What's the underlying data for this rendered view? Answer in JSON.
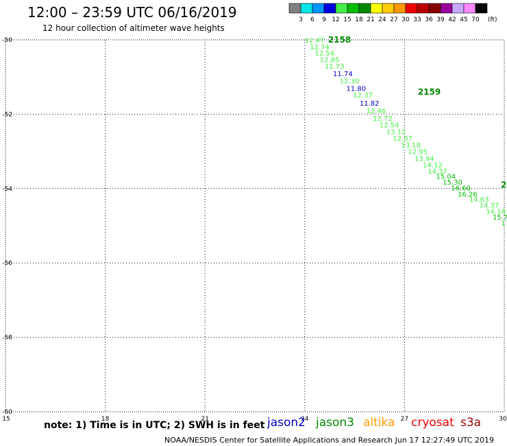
{
  "header": {
    "title": "12:00 – 23:59 UTC 06/16/2019",
    "subtitle": "12 hour collection of altimeter wave heights"
  },
  "legend": {
    "unit": "(ft)",
    "bins": [
      {
        "label": "3",
        "color": "#808080"
      },
      {
        "label": "6",
        "color": "#00e6e6"
      },
      {
        "label": "9",
        "color": "#0096ff"
      },
      {
        "label": "12",
        "color": "#0000e0"
      },
      {
        "label": "15",
        "color": "#44ee44"
      },
      {
        "label": "18",
        "color": "#00bb00"
      },
      {
        "label": "21",
        "color": "#008800"
      },
      {
        "label": "24",
        "color": "#ffff00"
      },
      {
        "label": "27",
        "color": "#ffcc00"
      },
      {
        "label": "30",
        "color": "#ff9900"
      },
      {
        "label": "33",
        "color": "#ee0000"
      },
      {
        "label": "36",
        "color": "#bb0000"
      },
      {
        "label": "39",
        "color": "#880000"
      },
      {
        "label": "42",
        "color": "#990099"
      },
      {
        "label": "45",
        "color": "#c8a8ff"
      },
      {
        "label": "70",
        "color": "#ff88ff"
      },
      {
        "label": "",
        "color": "#000000"
      }
    ]
  },
  "footer": {
    "note": "note: 1) Time is in UTC; 2) SWH is in feet",
    "satellites": [
      {
        "name": "jason2",
        "color": "#0000cc"
      },
      {
        "name": "jason3",
        "color": "#008800"
      },
      {
        "name": "altika",
        "color": "#ff9900"
      },
      {
        "name": "cryosat",
        "color": "#ee0000"
      },
      {
        "name": "s3a",
        "color": "#990000"
      }
    ],
    "credit": "NOAA/NESDIS Center for Satellite Applications and Research    Jun 17 12:27:49 UTC 2019"
  },
  "chart_data": {
    "type": "scatter",
    "xlim": [
      15,
      30
    ],
    "ylim": [
      -60,
      -50
    ],
    "x_ticks": [
      15,
      18,
      21,
      24,
      27,
      30
    ],
    "x_tick_labels": [
      "15",
      "18",
      "21",
      "24",
      "27",
      "30"
    ],
    "y_ticks": [
      -50,
      -52,
      -54,
      -56,
      -58,
      -60
    ],
    "y_tick_labels": [
      "-50",
      "-52",
      "-54",
      "-56",
      "-58",
      "-60"
    ],
    "grid": true,
    "time_labels": [
      {
        "text": "2158",
        "x": 24.7,
        "y": -50.0,
        "color": "#008800"
      },
      {
        "text": "2159",
        "x": 27.4,
        "y": -51.4,
        "color": "#008800"
      },
      {
        "text": "22",
        "x": 29.9,
        "y": -53.9,
        "color": "#008800"
      }
    ],
    "points": [
      {
        "x": 24.0,
        "y": -50.0,
        "label": "12.47",
        "color": "#44ee44"
      },
      {
        "x": 24.15,
        "y": -50.18,
        "label": "12.74",
        "color": "#44ee44"
      },
      {
        "x": 24.3,
        "y": -50.35,
        "label": "12.54",
        "color": "#44ee44"
      },
      {
        "x": 24.45,
        "y": -50.53,
        "label": "12.85",
        "color": "#44ee44"
      },
      {
        "x": 24.6,
        "y": -50.7,
        "label": "12.73",
        "color": "#44ee44"
      },
      {
        "x": 24.85,
        "y": -50.9,
        "label": "11.74",
        "color": "#0000cc"
      },
      {
        "x": 25.05,
        "y": -51.1,
        "label": "12.30",
        "color": "#44ee44"
      },
      {
        "x": 25.25,
        "y": -51.3,
        "label": "11.80",
        "color": "#0000cc"
      },
      {
        "x": 25.45,
        "y": -51.48,
        "label": "12.37",
        "color": "#44ee44"
      },
      {
        "x": 25.65,
        "y": -51.7,
        "label": "11.82",
        "color": "#0000cc"
      },
      {
        "x": 25.85,
        "y": -51.9,
        "label": "12.46",
        "color": "#44ee44"
      },
      {
        "x": 26.05,
        "y": -52.1,
        "label": "12.72",
        "color": "#44ee44"
      },
      {
        "x": 26.25,
        "y": -52.28,
        "label": "12.54",
        "color": "#44ee44"
      },
      {
        "x": 26.45,
        "y": -52.46,
        "label": "13.12",
        "color": "#44ee44"
      },
      {
        "x": 26.65,
        "y": -52.64,
        "label": "12.07",
        "color": "#44ee44"
      },
      {
        "x": 26.9,
        "y": -52.82,
        "label": "13.18",
        "color": "#44ee44"
      },
      {
        "x": 27.1,
        "y": -53.0,
        "label": "12.95",
        "color": "#44ee44"
      },
      {
        "x": 27.3,
        "y": -53.18,
        "label": "13.94",
        "color": "#44ee44"
      },
      {
        "x": 27.55,
        "y": -53.36,
        "label": "14.12",
        "color": "#44ee44"
      },
      {
        "x": 27.7,
        "y": -53.52,
        "label": "14.37",
        "color": "#44ee44"
      },
      {
        "x": 27.95,
        "y": -53.66,
        "label": "15.04",
        "color": "#00bb00"
      },
      {
        "x": 28.15,
        "y": -53.82,
        "label": "15.30",
        "color": "#00bb00"
      },
      {
        "x": 28.4,
        "y": -53.98,
        "label": "16.60",
        "color": "#00bb00"
      },
      {
        "x": 28.6,
        "y": -54.14,
        "label": "16.26",
        "color": "#00bb00"
      },
      {
        "x": 28.95,
        "y": -54.28,
        "label": "14.63",
        "color": "#44ee44"
      },
      {
        "x": 29.25,
        "y": -54.44,
        "label": "14.37",
        "color": "#44ee44"
      },
      {
        "x": 29.45,
        "y": -54.6,
        "label": "14.18",
        "color": "#44ee44"
      },
      {
        "x": 29.65,
        "y": -54.76,
        "label": "15.7",
        "color": "#00bb00"
      },
      {
        "x": 29.9,
        "y": -54.92,
        "label": "17",
        "color": "#44ee44"
      }
    ]
  }
}
